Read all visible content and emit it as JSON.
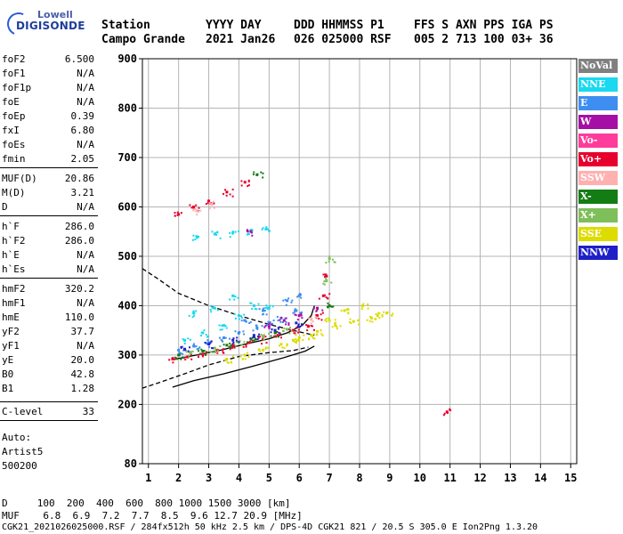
{
  "logo": {
    "line1": "Lowell",
    "line2": "DIGISONDE"
  },
  "header": {
    "labels": [
      "Station",
      "YYYY DAY",
      "DDD HHMMSS P1",
      "FFS S AXN PPS IGA PS"
    ],
    "values": [
      "Campo Grande",
      "2021 Jan26",
      "026 025000 RSF",
      "005 2 713 100 03+ 36"
    ]
  },
  "params": [
    {
      "k": "foF2",
      "v": "6.500"
    },
    {
      "k": "foF1",
      "v": "N/A"
    },
    {
      "k": "foF1p",
      "v": "N/A"
    },
    {
      "k": "foE",
      "v": "N/A"
    },
    {
      "k": "foEp",
      "v": "0.39"
    },
    {
      "k": "fxI",
      "v": "6.80"
    },
    {
      "k": "foEs",
      "v": "N/A"
    },
    {
      "k": "fmin",
      "v": "2.05"
    },
    {
      "k": "MUF(D)",
      "v": "20.86"
    },
    {
      "k": "M(D)",
      "v": "3.21"
    },
    {
      "k": "D",
      "v": "N/A"
    },
    {
      "k": "h`F",
      "v": "286.0"
    },
    {
      "k": "h`F2",
      "v": "286.0"
    },
    {
      "k": "h`E",
      "v": "N/A"
    },
    {
      "k": "h`Es",
      "v": "N/A"
    },
    {
      "k": "hmF2",
      "v": "320.2"
    },
    {
      "k": "hmF1",
      "v": "N/A"
    },
    {
      "k": "hmE",
      "v": "110.0"
    },
    {
      "k": "yF2",
      "v": "37.7"
    },
    {
      "k": "yF1",
      "v": "N/A"
    },
    {
      "k": "yE",
      "v": "20.0"
    },
    {
      "k": "B0",
      "v": "42.8"
    },
    {
      "k": "B1",
      "v": "1.28"
    },
    {
      "k": "C-level",
      "v": "33"
    }
  ],
  "auto": {
    "line1": "Auto:",
    "line2": "Artist5",
    "line3": "500200"
  },
  "legend": [
    {
      "label": "NoVal",
      "color": "#808080"
    },
    {
      "label": "NNE",
      "color": "#19d8f0"
    },
    {
      "label": "E",
      "color": "#3d8ef0"
    },
    {
      "label": "W",
      "color": "#a50fa5"
    },
    {
      "label": "Vo-",
      "color": "#ff3c9b"
    },
    {
      "label": "Vo+",
      "color": "#e8002d"
    },
    {
      "label": "SSW",
      "color": "#ffb0b0"
    },
    {
      "label": "X-",
      "color": "#137d13"
    },
    {
      "label": "X+",
      "color": "#7fbf5a"
    },
    {
      "label": "SSE",
      "color": "#dcdc00"
    },
    {
      "label": "NNW",
      "color": "#2020c8"
    }
  ],
  "bottom": {
    "d_row": "D     100  200  400  600  800 1000 1500 3000 [km]",
    "muf_row": "MUF    6.8  6.9  7.2  7.7  8.5  9.6 12.7 20.9 [MHz]",
    "footer": "CGK21_2021026025000.RSF / 284fx512h 50 kHz 2.5 km / DPS-4D CGK21 821 / 20.5 S 305.0 E Ion2Png 1.3.20"
  },
  "chart_data": {
    "type": "scatter",
    "title": "",
    "xlabel": "",
    "ylabel": "",
    "xlim": [
      0.8,
      15.2
    ],
    "ylim": [
      80,
      900
    ],
    "xticks": [
      1,
      2,
      3,
      4,
      5,
      6,
      7,
      8,
      9,
      10,
      11,
      12,
      13,
      14,
      15
    ],
    "yticks": [
      80,
      200,
      300,
      400,
      500,
      600,
      700,
      800,
      900
    ],
    "grid": true,
    "legend_position": "right",
    "series": [
      {
        "name": "NNE",
        "color": "#19d8f0",
        "points": [
          [
            2.6,
            540
          ],
          [
            3.2,
            545
          ],
          [
            3.8,
            548
          ],
          [
            4.4,
            552
          ],
          [
            4.9,
            555
          ],
          [
            2.2,
            330
          ],
          [
            2.8,
            345
          ],
          [
            3.5,
            360
          ],
          [
            4.0,
            380
          ],
          [
            4.5,
            400
          ],
          [
            5.0,
            395
          ],
          [
            2.5,
            385
          ],
          [
            3.2,
            395
          ],
          [
            3.8,
            420
          ]
        ]
      },
      {
        "name": "E",
        "color": "#3d8ef0",
        "points": [
          [
            2.0,
            310
          ],
          [
            2.5,
            318
          ],
          [
            3.0,
            325
          ],
          [
            3.5,
            335
          ],
          [
            4.0,
            345
          ],
          [
            4.6,
            355
          ],
          [
            5.0,
            365
          ],
          [
            5.4,
            375
          ],
          [
            5.9,
            390
          ],
          [
            4.2,
            370
          ],
          [
            4.8,
            390
          ],
          [
            5.6,
            410
          ],
          [
            6.0,
            420
          ]
        ]
      },
      {
        "name": "W",
        "color": "#a50fa5",
        "points": [
          [
            5.0,
            358
          ],
          [
            5.5,
            370
          ],
          [
            6.0,
            380
          ],
          [
            4.4,
            550
          ],
          [
            6.6,
            395
          ]
        ]
      },
      {
        "name": "Vo+",
        "color": "#e8002d",
        "points": [
          [
            1.8,
            292
          ],
          [
            2.3,
            296
          ],
          [
            2.8,
            302
          ],
          [
            3.3,
            310
          ],
          [
            3.8,
            318
          ],
          [
            4.3,
            325
          ],
          [
            4.8,
            332
          ],
          [
            5.3,
            340
          ],
          [
            5.8,
            350
          ],
          [
            6.3,
            358
          ],
          [
            6.6,
            380
          ],
          [
            6.8,
            420
          ],
          [
            6.9,
            460
          ],
          [
            2.0,
            585
          ],
          [
            2.5,
            600
          ],
          [
            3.0,
            612
          ],
          [
            3.6,
            630
          ],
          [
            4.2,
            650
          ],
          [
            10.9,
            185
          ]
        ]
      },
      {
        "name": "SSW",
        "color": "#ffb0b0",
        "points": [
          [
            2.6,
            592
          ],
          [
            3.1,
            605
          ],
          [
            6.4,
            372
          ]
        ]
      },
      {
        "name": "X-",
        "color": "#137d13",
        "points": [
          [
            2.0,
            300
          ],
          [
            2.8,
            308
          ],
          [
            3.6,
            320
          ],
          [
            4.4,
            332
          ],
          [
            5.2,
            345
          ],
          [
            4.6,
            665
          ],
          [
            7.0,
            400
          ]
        ]
      },
      {
        "name": "X+",
        "color": "#7fbf5a",
        "points": [
          [
            2.4,
            304
          ],
          [
            3.2,
            314
          ],
          [
            4.0,
            326
          ],
          [
            4.8,
            338
          ],
          [
            5.6,
            352
          ],
          [
            7.0,
            495
          ],
          [
            6.9,
            450
          ]
        ]
      },
      {
        "name": "SSE",
        "color": "#dcdc00",
        "points": [
          [
            3.6,
            292
          ],
          [
            4.2,
            300
          ],
          [
            4.8,
            310
          ],
          [
            5.4,
            322
          ],
          [
            6.0,
            335
          ],
          [
            6.6,
            348
          ],
          [
            7.2,
            360
          ],
          [
            7.8,
            368
          ],
          [
            8.4,
            375
          ],
          [
            8.9,
            385
          ],
          [
            7.5,
            390
          ],
          [
            8.1,
            400
          ],
          [
            8.6,
            380
          ],
          [
            7.0,
            370
          ],
          [
            6.4,
            340
          ],
          [
            5.8,
            330
          ]
        ]
      },
      {
        "name": "NNW",
        "color": "#2020c8",
        "points": [
          [
            2.2,
            312
          ],
          [
            3.0,
            322
          ],
          [
            3.8,
            330
          ],
          [
            4.5,
            340
          ],
          [
            5.2,
            350
          ],
          [
            5.9,
            365
          ]
        ]
      }
    ],
    "lines": [
      {
        "name": "profile-dashed",
        "color": "#000000",
        "dash": true,
        "points": [
          [
            0.8,
            475
          ],
          [
            1.3,
            455
          ],
          [
            2.0,
            425
          ],
          [
            3.0,
            400
          ],
          [
            4.0,
            380
          ],
          [
            5.0,
            362
          ],
          [
            5.8,
            350
          ],
          [
            6.5,
            340
          ]
        ]
      },
      {
        "name": "profile-dashed-lower",
        "color": "#000000",
        "dash": true,
        "points": [
          [
            0.8,
            233
          ],
          [
            1.4,
            245
          ],
          [
            2.2,
            262
          ],
          [
            3.0,
            280
          ],
          [
            4.0,
            297
          ],
          [
            5.0,
            305
          ],
          [
            5.8,
            309
          ],
          [
            6.3,
            316
          ]
        ]
      },
      {
        "name": "profile-solid",
        "color": "#000000",
        "dash": false,
        "points": [
          [
            1.8,
            235
          ],
          [
            2.5,
            248
          ],
          [
            3.5,
            262
          ],
          [
            4.5,
            278
          ],
          [
            5.5,
            295
          ],
          [
            6.2,
            308
          ],
          [
            6.5,
            318
          ]
        ]
      },
      {
        "name": "trace-solid",
        "color": "#000000",
        "dash": false,
        "points": [
          [
            1.9,
            292
          ],
          [
            2.6,
            300
          ],
          [
            3.4,
            310
          ],
          [
            4.2,
            322
          ],
          [
            5.0,
            333
          ],
          [
            5.6,
            345
          ],
          [
            6.1,
            360
          ],
          [
            6.4,
            380
          ],
          [
            6.5,
            400
          ]
        ]
      }
    ]
  }
}
